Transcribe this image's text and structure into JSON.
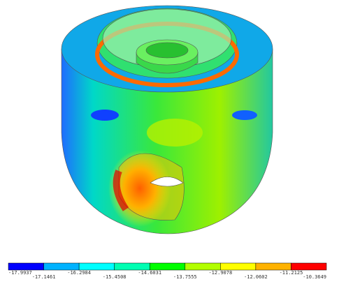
{
  "legend": {
    "colors": [
      "#0000ff",
      "#00b2ff",
      "#00ffff",
      "#00ffb2",
      "#00ff00",
      "#b2ff00",
      "#ffff00",
      "#ffb200",
      "#ff0000"
    ],
    "labels": [
      "-17.9937",
      "-17.1461",
      "-16.2984",
      "-15.4508",
      "-14.6031",
      "-13.7555",
      "-12.9078",
      "-12.0602",
      "-11.2125",
      "-10.3649"
    ]
  }
}
